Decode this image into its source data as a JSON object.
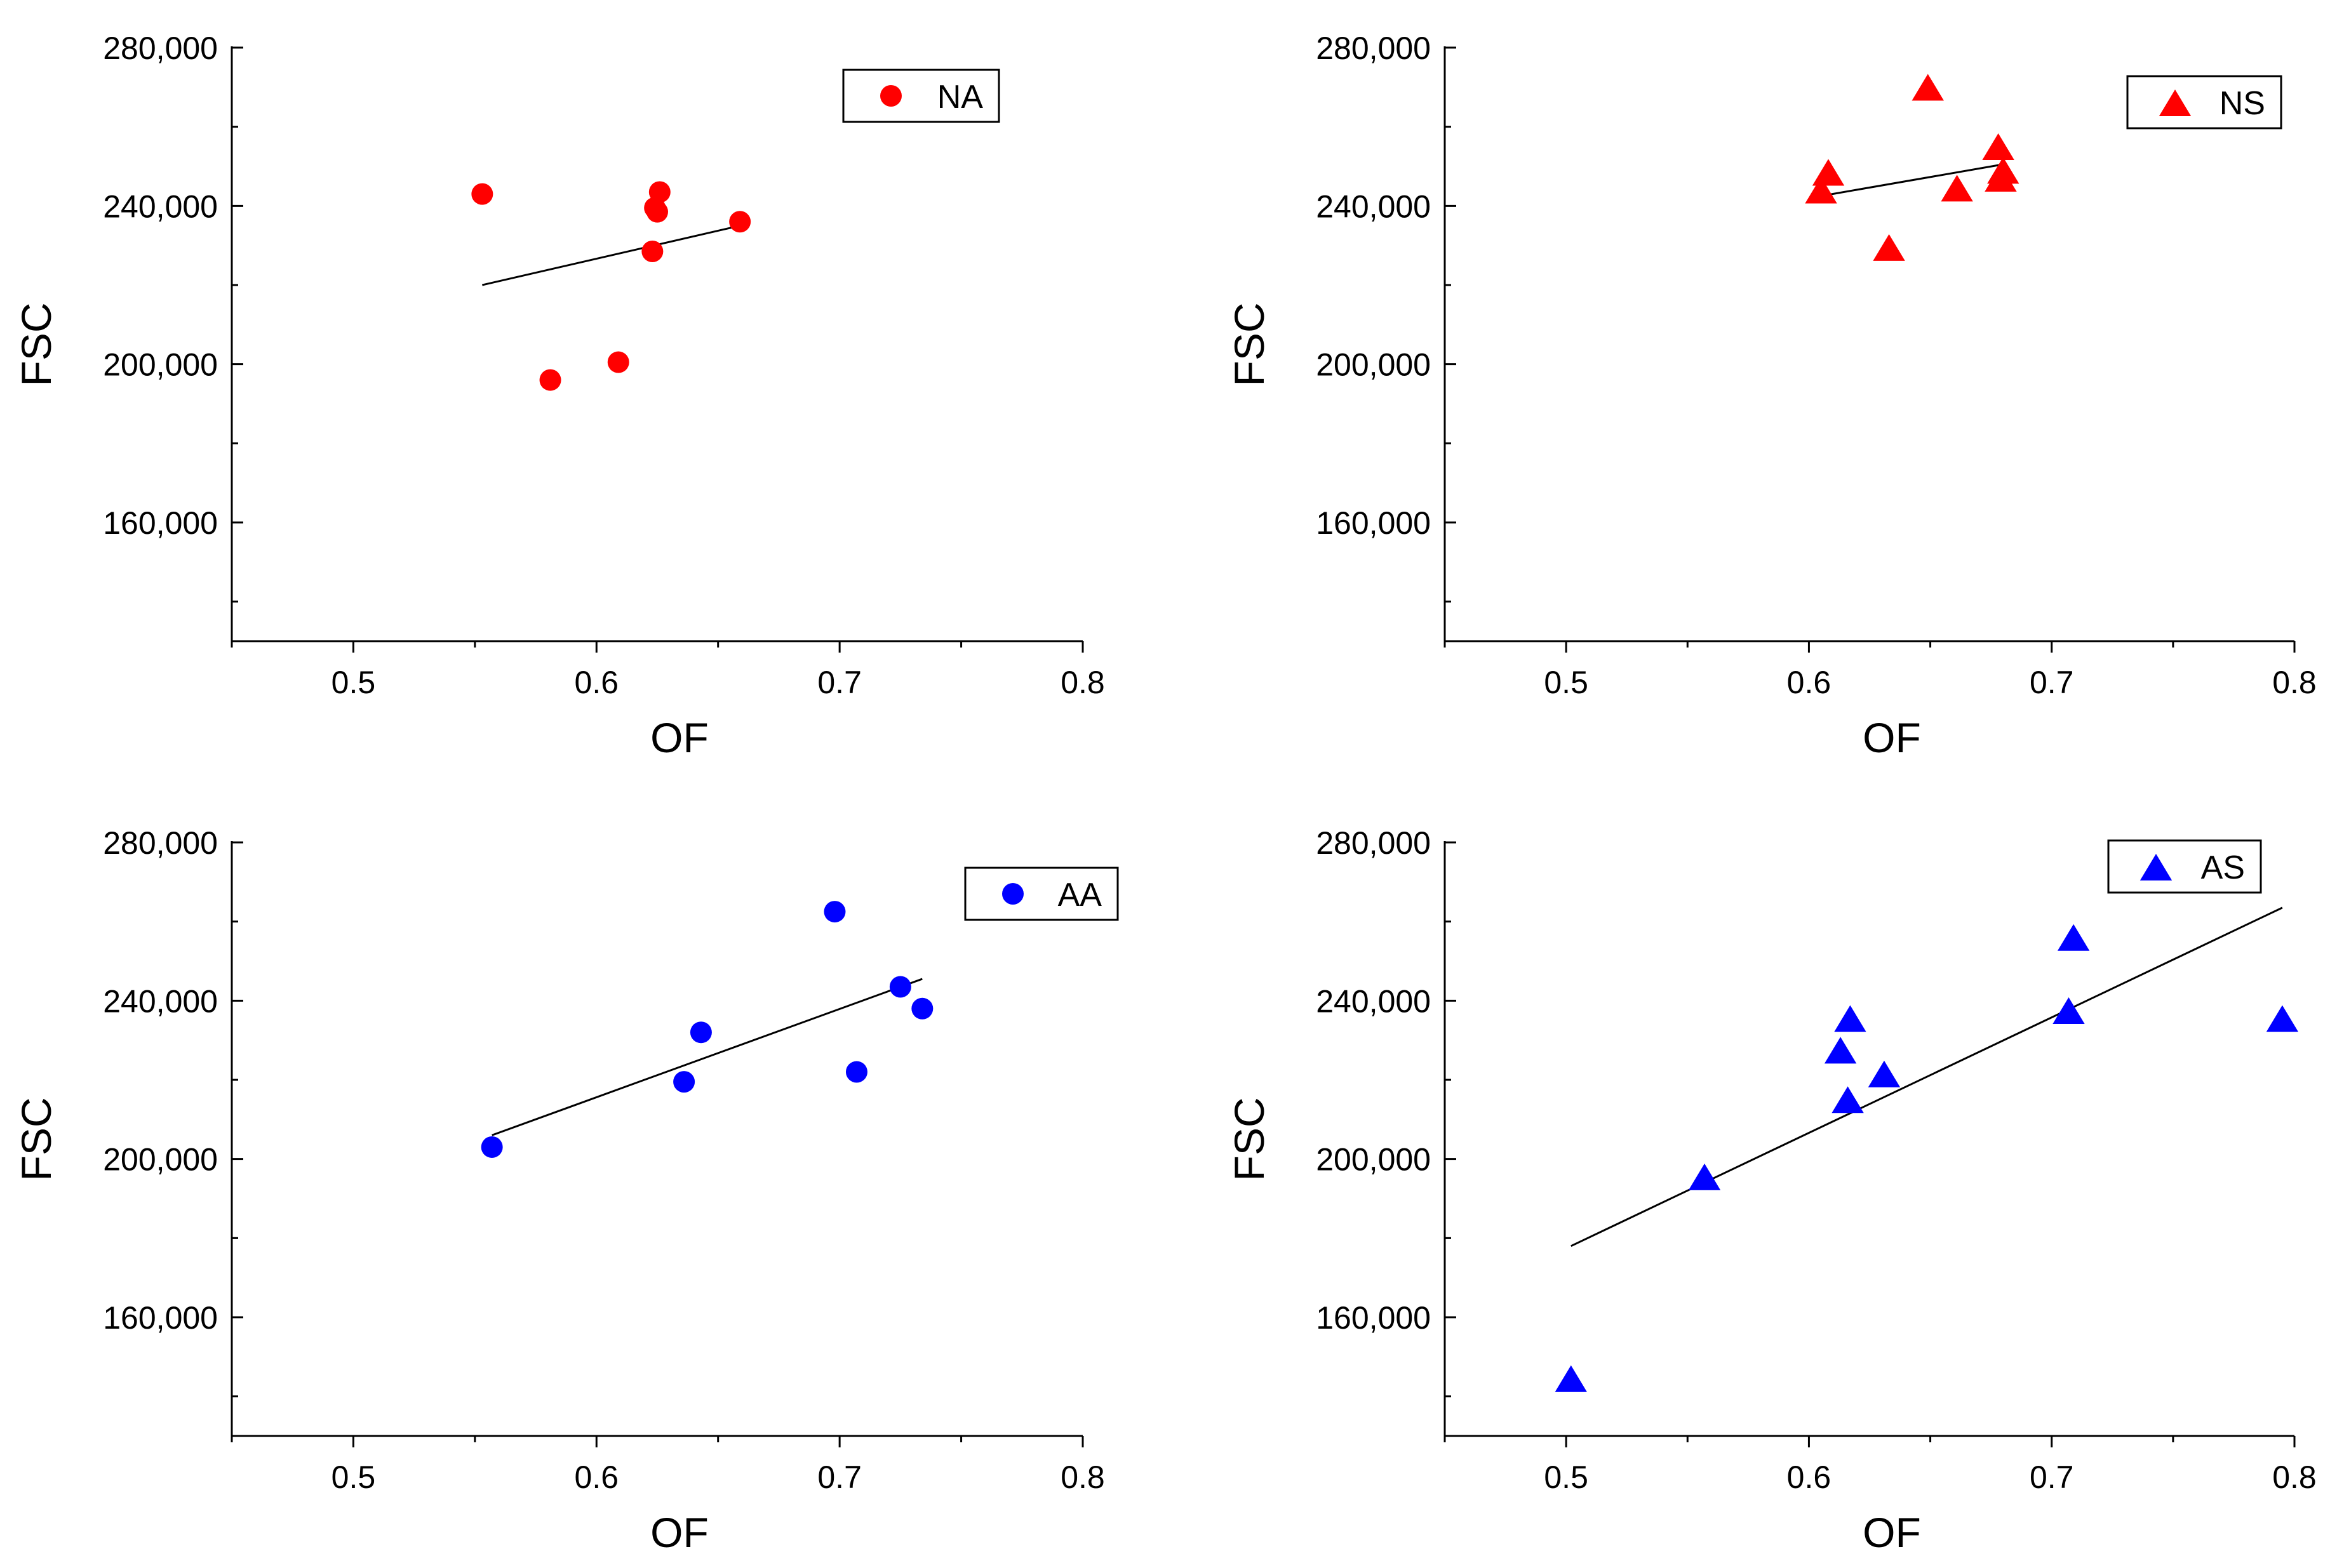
{
  "chart_data": [
    {
      "type": "scatter",
      "title": "",
      "xlabel": "OF",
      "ylabel": "FSC",
      "xlim": [
        0.45,
        0.8
      ],
      "ylim": [
        130000,
        280000
      ],
      "xticks": [
        0.5,
        0.6,
        0.7,
        0.8
      ],
      "xtick_labels": [
        "0.5",
        "0.6",
        "0.7",
        "0.8"
      ],
      "yticks": [
        160000,
        200000,
        240000,
        280000
      ],
      "ytick_labels": [
        "160,000",
        "200,000",
        "240,000",
        "280,000"
      ],
      "grid": false,
      "legend_position": "top-right",
      "series": [
        {
          "name": "NA",
          "marker": "circle",
          "color": "#ff0000",
          "x": [
            0.553,
            0.581,
            0.609,
            0.623,
            0.624,
            0.625,
            0.626,
            0.659
          ],
          "y": [
            243000,
            196000,
            200500,
            228500,
            239500,
            238500,
            243500,
            236000
          ]
        }
      ],
      "fit_line": {
        "x": [
          0.553,
          0.659
        ],
        "y": [
          220000,
          235000
        ]
      }
    },
    {
      "type": "scatter",
      "title": "",
      "xlabel": "OF",
      "ylabel": "FSC",
      "xlim": [
        0.45,
        0.8
      ],
      "ylim": [
        130000,
        280000
      ],
      "xticks": [
        0.5,
        0.6,
        0.7,
        0.8
      ],
      "xtick_labels": [
        "0.5",
        "0.6",
        "0.7",
        "0.8"
      ],
      "yticks": [
        160000,
        200000,
        240000,
        280000
      ],
      "ytick_labels": [
        "160,000",
        "200,000",
        "240,000",
        "280,000"
      ],
      "grid": false,
      "legend_position": "top-right",
      "series": [
        {
          "name": "NS",
          "marker": "triangle",
          "color": "#ff0000",
          "x": [
            0.605,
            0.608,
            0.633,
            0.649,
            0.661,
            0.678,
            0.679,
            0.68
          ],
          "y": [
            243500,
            248000,
            229000,
            269500,
            244000,
            254500,
            246500,
            248500
          ]
        }
      ],
      "fit_line": {
        "x": [
          0.605,
          0.68
        ],
        "y": [
          242500,
          250500
        ]
      }
    },
    {
      "type": "scatter",
      "title": "",
      "xlabel": "OF",
      "ylabel": "FSC",
      "xlim": [
        0.45,
        0.8
      ],
      "ylim": [
        130000,
        280000
      ],
      "xticks": [
        0.5,
        0.6,
        0.7,
        0.8
      ],
      "xtick_labels": [
        "0.5",
        "0.6",
        "0.7",
        "0.8"
      ],
      "yticks": [
        160000,
        200000,
        240000,
        280000
      ],
      "ytick_labels": [
        "160,000",
        "200,000",
        "240,000",
        "280,000"
      ],
      "grid": false,
      "legend_position": "top-right",
      "series": [
        {
          "name": "AA",
          "marker": "circle",
          "color": "#0000ff",
          "x": [
            0.557,
            0.636,
            0.643,
            0.698,
            0.707,
            0.725,
            0.734
          ],
          "y": [
            203000,
            219500,
            232000,
            262500,
            222000,
            243500,
            238000
          ]
        }
      ],
      "fit_line": {
        "x": [
          0.557,
          0.734
        ],
        "y": [
          206000,
          245500
        ]
      }
    },
    {
      "type": "scatter",
      "title": "",
      "xlabel": "OF",
      "ylabel": "FSC",
      "xlim": [
        0.45,
        0.8
      ],
      "ylim": [
        130000,
        280000
      ],
      "xticks": [
        0.5,
        0.6,
        0.7,
        0.8
      ],
      "xtick_labels": [
        "0.5",
        "0.6",
        "0.7",
        "0.8"
      ],
      "yticks": [
        160000,
        200000,
        240000,
        280000
      ],
      "ytick_labels": [
        "160,000",
        "200,000",
        "240,000",
        "280,000"
      ],
      "grid": false,
      "legend_position": "top-right",
      "series": [
        {
          "name": "AS",
          "marker": "triangle",
          "color": "#0000ff",
          "x": [
            0.502,
            0.557,
            0.613,
            0.616,
            0.617,
            0.631,
            0.707,
            0.709,
            0.795
          ],
          "y": [
            144000,
            195000,
            227000,
            214500,
            235000,
            221000,
            237000,
            255500,
            235000
          ]
        }
      ],
      "fit_line": {
        "x": [
          0.502,
          0.795
        ],
        "y": [
          178000,
          263500
        ]
      }
    }
  ]
}
